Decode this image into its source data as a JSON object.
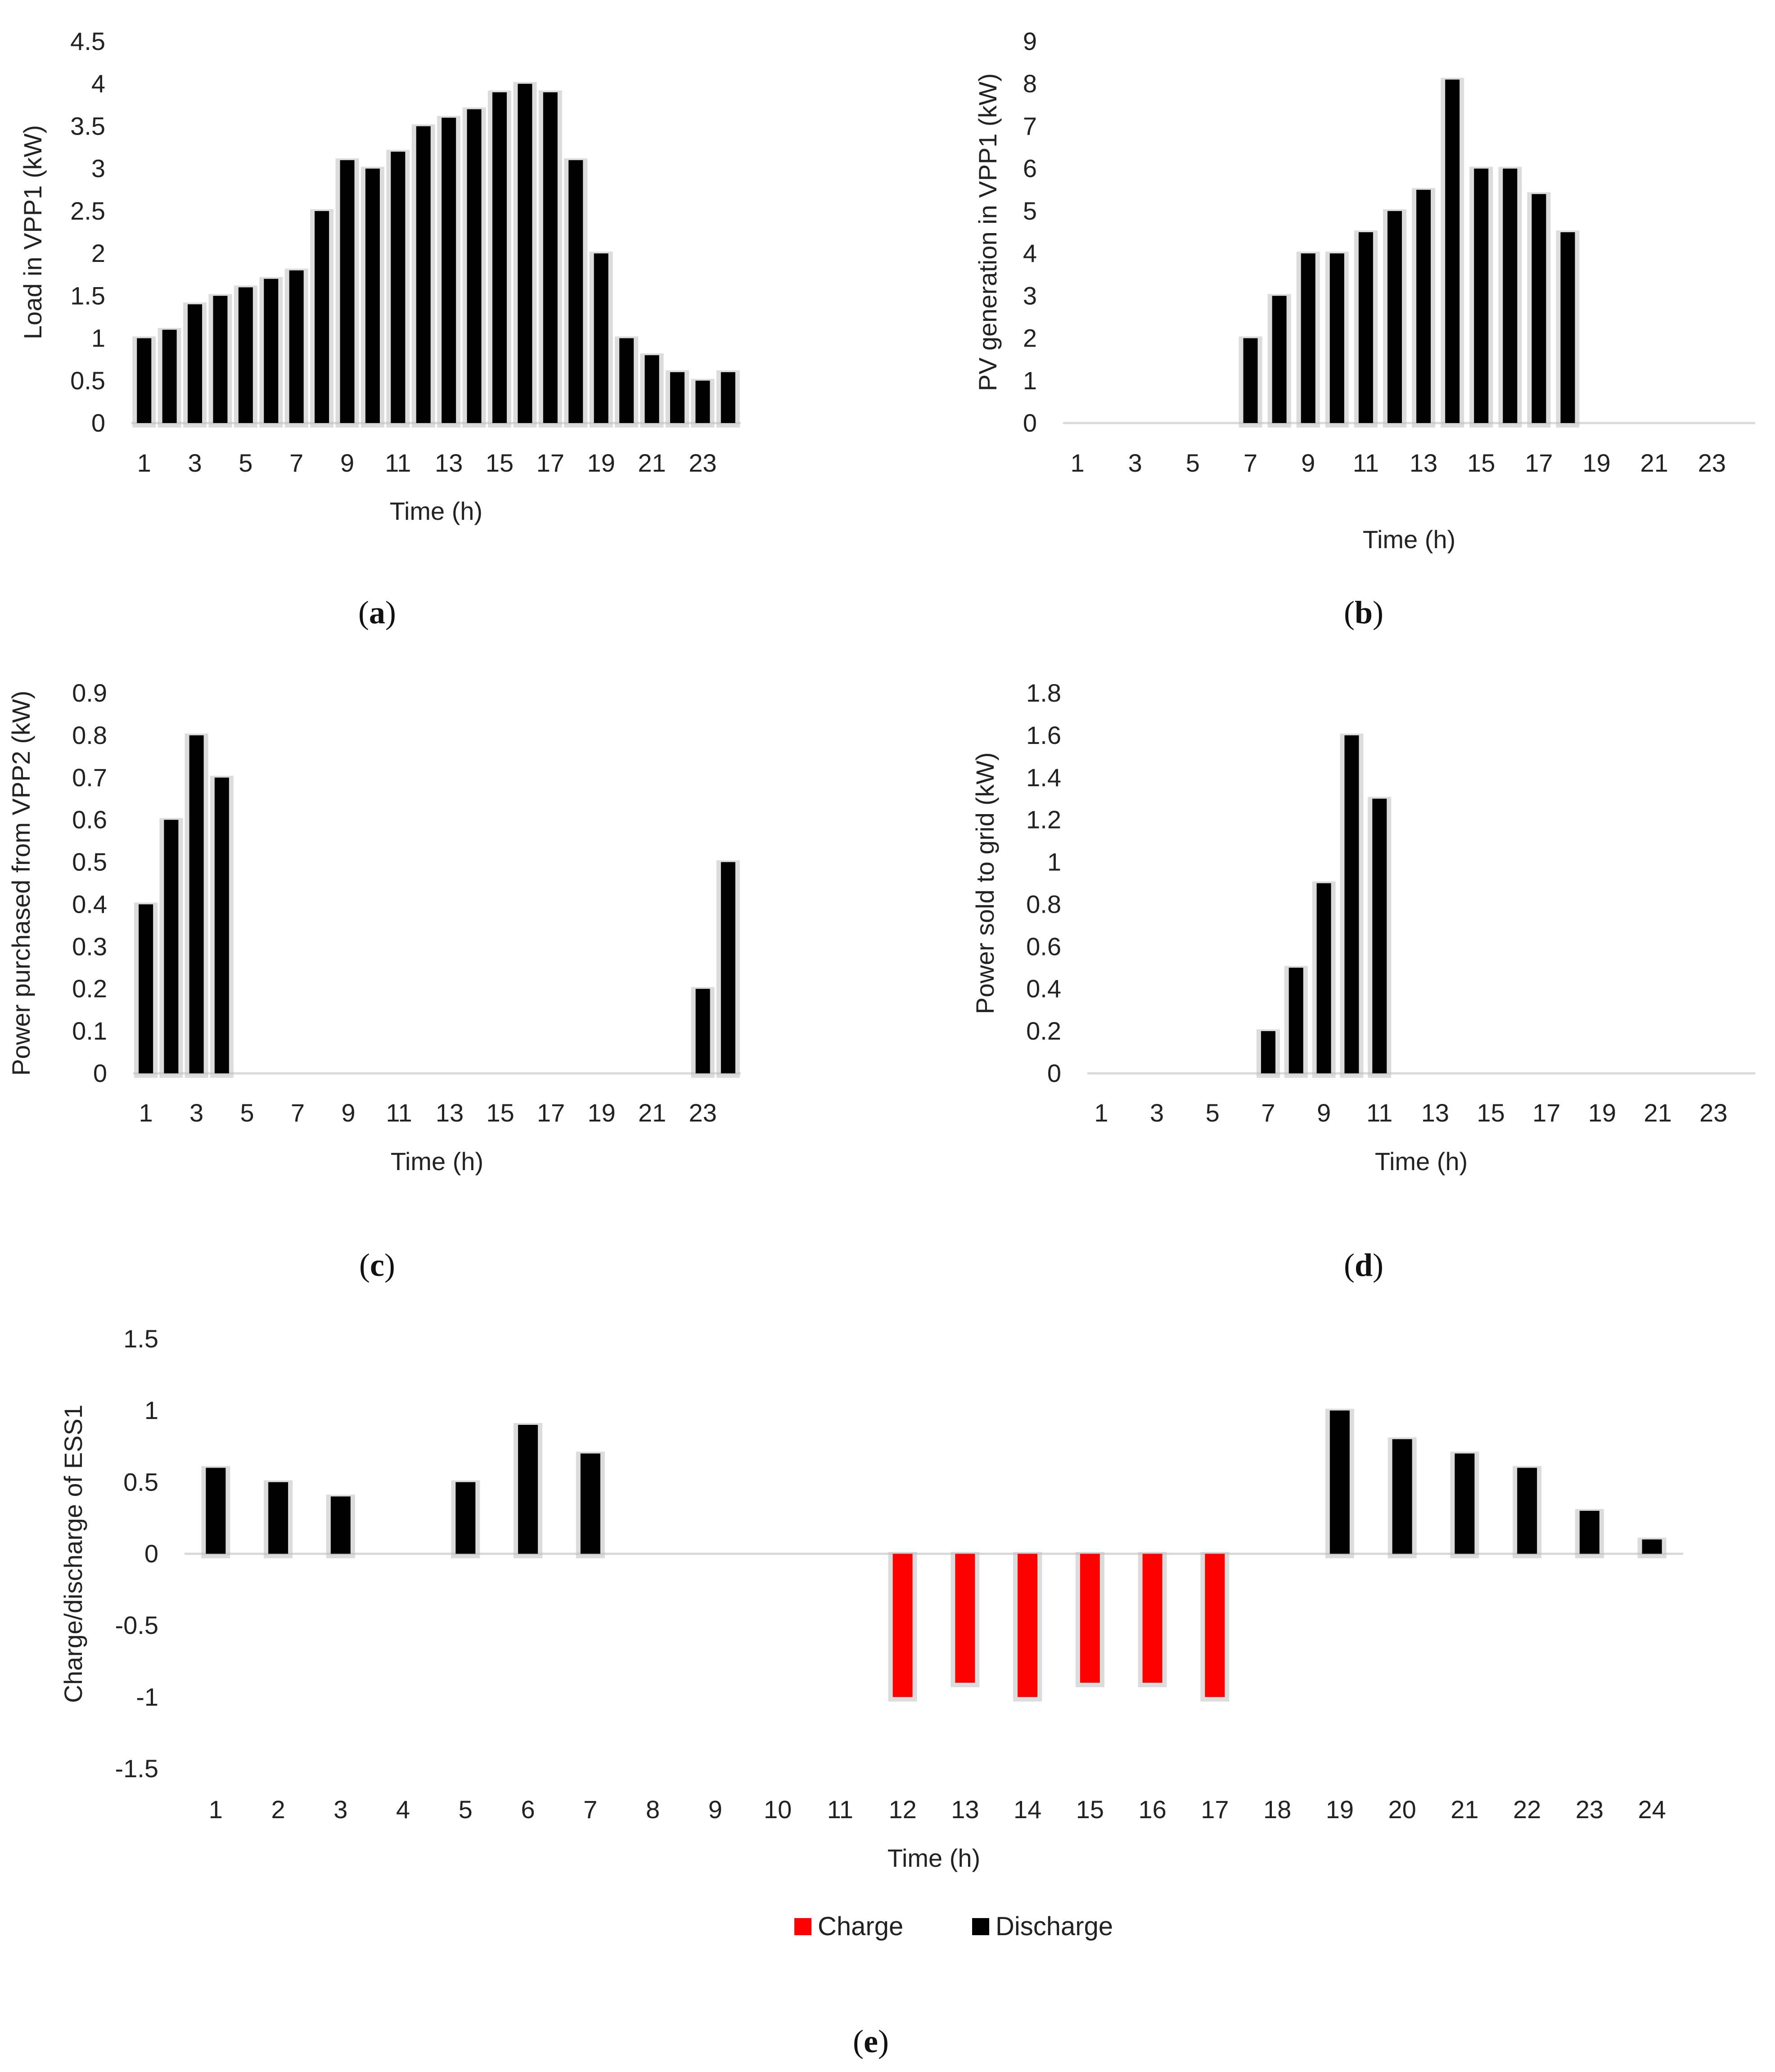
{
  "colors": {
    "discharge": "#000000",
    "charge": "#ff0000",
    "axis": "#d9d9d9",
    "shadow": "#bfbfbf"
  },
  "chart_data": [
    {
      "id": "a",
      "type": "bar",
      "panel_label": "a",
      "xlabel": "Time (h)",
      "ylabel": "Load in VPP1 (kW)",
      "ylim": [
        0,
        4.5
      ],
      "yticks": [
        "0",
        "0.5",
        "1",
        "1.5",
        "2",
        "2.5",
        "3",
        "3.5",
        "4",
        "4.5"
      ],
      "categories": [
        1,
        2,
        3,
        4,
        5,
        6,
        7,
        8,
        9,
        10,
        11,
        12,
        13,
        14,
        15,
        16,
        17,
        18,
        19,
        20,
        21,
        22,
        23,
        24
      ],
      "xtick_labels": [
        "1",
        "3",
        "5",
        "7",
        "9",
        "11",
        "13",
        "15",
        "17",
        "19",
        "21",
        "23"
      ],
      "series": [
        {
          "name": "Load",
          "values": [
            1.0,
            1.1,
            1.4,
            1.5,
            1.6,
            1.7,
            1.8,
            2.5,
            3.1,
            3.0,
            3.2,
            3.5,
            3.6,
            3.7,
            3.9,
            4.0,
            3.9,
            3.1,
            2.0,
            1.0,
            0.8,
            0.6,
            0.5,
            0.6
          ]
        }
      ]
    },
    {
      "id": "b",
      "type": "bar",
      "panel_label": "b",
      "xlabel": "Time (h)",
      "ylabel": "PV generation in VPP1 (kW)",
      "ylim": [
        0,
        9
      ],
      "yticks": [
        "0",
        "1",
        "2",
        "3",
        "4",
        "5",
        "6",
        "7",
        "8",
        "9"
      ],
      "categories": [
        1,
        2,
        3,
        4,
        5,
        6,
        7,
        8,
        9,
        10,
        11,
        12,
        13,
        14,
        15,
        16,
        17,
        18,
        19,
        20,
        21,
        22,
        23,
        24
      ],
      "xtick_labels": [
        "1",
        "3",
        "5",
        "7",
        "9",
        "11",
        "13",
        "15",
        "17",
        "19",
        "21",
        "23"
      ],
      "series": [
        {
          "name": "PV generation",
          "values": [
            0,
            0,
            0,
            0,
            0,
            0,
            2,
            3,
            4,
            4,
            4.5,
            5,
            5.5,
            8.1,
            6,
            6,
            5.4,
            4.5,
            0,
            0,
            0,
            0,
            0,
            0
          ]
        }
      ]
    },
    {
      "id": "c",
      "type": "bar",
      "panel_label": "c",
      "xlabel": "Time (h)",
      "ylabel": "Power purchased from VPP2 (kW)",
      "ylim": [
        0,
        0.9
      ],
      "yticks": [
        "0",
        "0.1",
        "0.2",
        "0.3",
        "0.4",
        "0.5",
        "0.6",
        "0.7",
        "0.8",
        "0.9"
      ],
      "categories": [
        1,
        2,
        3,
        4,
        5,
        6,
        7,
        8,
        9,
        10,
        11,
        12,
        13,
        14,
        15,
        16,
        17,
        18,
        19,
        20,
        21,
        22,
        23,
        24
      ],
      "xtick_labels": [
        "1",
        "3",
        "5",
        "7",
        "9",
        "11",
        "13",
        "15",
        "17",
        "19",
        "21",
        "23"
      ],
      "series": [
        {
          "name": "Purchased",
          "values": [
            0.4,
            0.6,
            0.8,
            0.7,
            0,
            0,
            0,
            0,
            0,
            0,
            0,
            0,
            0,
            0,
            0,
            0,
            0,
            0,
            0,
            0,
            0,
            0,
            0.2,
            0.5
          ]
        }
      ]
    },
    {
      "id": "d",
      "type": "bar",
      "panel_label": "d",
      "xlabel": "Time (h)",
      "ylabel": "Power sold to grid (kW)",
      "ylim": [
        0,
        1.8
      ],
      "yticks": [
        "0",
        "0.2",
        "0.4",
        "0.6",
        "0.8",
        "1",
        "1.2",
        "1.4",
        "1.6",
        "1.8"
      ],
      "categories": [
        1,
        2,
        3,
        4,
        5,
        6,
        7,
        8,
        9,
        10,
        11,
        12,
        13,
        14,
        15,
        16,
        17,
        18,
        19,
        20,
        21,
        22,
        23,
        24
      ],
      "xtick_labels": [
        "1",
        "3",
        "5",
        "7",
        "9",
        "11",
        "13",
        "15",
        "17",
        "19",
        "21",
        "23"
      ],
      "series": [
        {
          "name": "Sold",
          "values": [
            0,
            0,
            0,
            0,
            0,
            0,
            0.2,
            0.5,
            0.9,
            1.6,
            1.3,
            0,
            0,
            0,
            0,
            0,
            0,
            0,
            0,
            0,
            0,
            0,
            0,
            0
          ]
        }
      ]
    },
    {
      "id": "e",
      "type": "bar",
      "panel_label": "e",
      "xlabel": "Time (h)",
      "ylabel": "Charge/discharge of ESS1",
      "ylim": [
        -1.5,
        1.5
      ],
      "yticks": [
        "-1.5",
        "-1",
        "-0.5",
        "0",
        "0.5",
        "1",
        "1.5"
      ],
      "categories": [
        1,
        2,
        3,
        4,
        5,
        6,
        7,
        8,
        9,
        10,
        11,
        12,
        13,
        14,
        15,
        16,
        17,
        18,
        19,
        20,
        21,
        22,
        23,
        24
      ],
      "xtick_labels": [
        "1",
        "2",
        "3",
        "4",
        "5",
        "6",
        "7",
        "8",
        "9",
        "10",
        "11",
        "12",
        "13",
        "14",
        "15",
        "16",
        "17",
        "18",
        "19",
        "20",
        "21",
        "22",
        "23",
        "24"
      ],
      "series": [
        {
          "name": "Charge",
          "color_key": "charge",
          "values": [
            0,
            0,
            0,
            0,
            0,
            0,
            0,
            0,
            0,
            0,
            0,
            -1.0,
            -0.9,
            -1.0,
            -0.9,
            -0.9,
            -1.0,
            0,
            0,
            0,
            0,
            0,
            0,
            0
          ]
        },
        {
          "name": "Discharge",
          "color_key": "discharge",
          "values": [
            0.6,
            0.5,
            0.4,
            0,
            0.5,
            0.9,
            0.7,
            0,
            0,
            0,
            0,
            0,
            0,
            0,
            0,
            0,
            0,
            0,
            1.0,
            0.8,
            0.7,
            0.6,
            0.3,
            0.1
          ]
        }
      ],
      "legend": [
        "Charge",
        "Discharge"
      ]
    }
  ]
}
